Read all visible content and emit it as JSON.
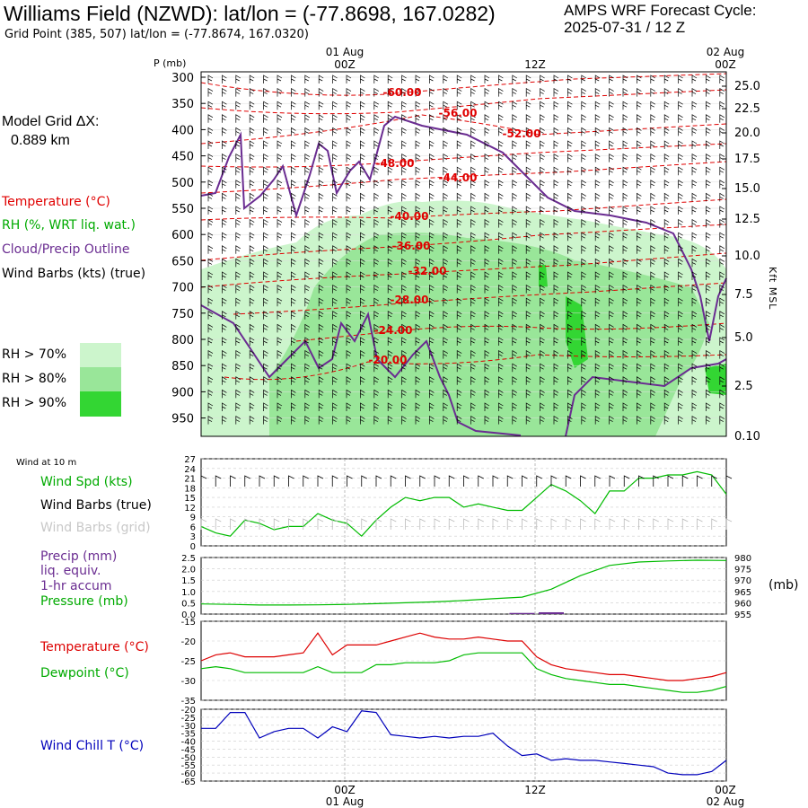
{
  "header": {
    "title": "Williams Field (NZWD):  lat/lon = (-77.8698, 167.0282)",
    "subtitle": "Grid Point (385, 507) lat/lon = (-77.8674, 167.0320)",
    "cycle_label": "AMPS WRF Forecast Cycle:",
    "cycle_value": "2025-07-31 / 12  Z"
  },
  "legend": {
    "model_grid": "Model Grid ΔX:",
    "model_grid_value": "0.889 km",
    "temperature": "Temperature (°C)",
    "rh": "RH (%, WRT liq. wat.)",
    "cloud": "Cloud/Precip Outline",
    "wind_barbs": "Wind Barbs (kts) (true)",
    "rh70": "RH > 70%",
    "rh80": "RH > 80%",
    "rh90": "RH > 90%",
    "colors": {
      "temperature": "#e00000",
      "rh": "#00aa00",
      "cloud": "#6a2c91",
      "rh70": "#ccf5cc",
      "rh80": "#99e699",
      "rh90": "#33d633"
    }
  },
  "time_axis": {
    "top_dates": [
      "01 Aug",
      "02 Aug"
    ],
    "ticks": [
      "00Z",
      "12Z",
      "00Z"
    ],
    "bottom_dates": [
      "01 Aug",
      "02 Aug"
    ]
  },
  "chart_data": [
    {
      "type": "area",
      "title": "",
      "ylabel": "P (mb)",
      "y_ticks": [
        "300",
        "350",
        "400",
        "450",
        "500",
        "550",
        "600",
        "650",
        "700",
        "750",
        "800",
        "850",
        "900",
        "950"
      ],
      "right_ticks": [
        "25.0",
        "22.5",
        "20.0",
        "17.5",
        "15.0",
        "12.5",
        "10.0",
        "7.5",
        "5.0",
        "2.5",
        "0.10"
      ],
      "right_label": "Kft MSL",
      "temperature_labels": [
        "-60.00",
        "-56.00",
        "-52.00",
        "-48.00",
        "-44.00",
        "-40.00",
        "-36.00",
        "-32.00",
        "-28.00",
        "-24.00",
        "-20.00"
      ]
    },
    {
      "type": "line",
      "header": "Wind at 10 m",
      "labels": [
        "Wind Spd (kts)",
        "Wind Barbs (true)",
        "Wind Barbs (grid)"
      ],
      "y_ticks": [
        "27",
        "24",
        "21",
        "18",
        "15",
        "12",
        "9",
        "6",
        "3",
        "0"
      ],
      "ylim": [
        0,
        27
      ],
      "x": [
        0,
        1,
        2,
        3,
        4,
        5,
        6,
        7,
        8,
        9,
        10,
        11,
        12,
        13,
        14,
        15,
        16,
        17,
        18,
        19,
        20,
        21,
        22,
        23,
        24,
        25,
        26,
        27,
        28,
        29,
        30,
        31,
        32,
        33,
        34,
        35,
        36
      ],
      "series": [
        {
          "name": "Wind Spd (kts)",
          "color": "#00bb00",
          "values": [
            6,
            4,
            3,
            8,
            7,
            5,
            6,
            6,
            10,
            8,
            7,
            3,
            8,
            12,
            15,
            14,
            15,
            15,
            12,
            13,
            12,
            11,
            11,
            15,
            19,
            17,
            14,
            10,
            17,
            17,
            21,
            21,
            22,
            22,
            23,
            22,
            16
          ]
        }
      ]
    },
    {
      "type": "line",
      "labels": [
        "Precip (mm)",
        "liq. equiv.",
        "1-hr accum",
        "Pressure (mb)"
      ],
      "y_ticks_left": [
        "2.5",
        "2.0",
        "1.5",
        "1.0",
        "0.5",
        "0.0"
      ],
      "y_ticks_right": [
        "980",
        "975",
        "970",
        "965",
        "960",
        "955"
      ],
      "right_unit": "(mb)",
      "ylim": [
        0,
        2.5
      ],
      "x": [
        0,
        2,
        4,
        6,
        8,
        10,
        12,
        14,
        16,
        18,
        20,
        22,
        24,
        26,
        28,
        30,
        32,
        34,
        36
      ],
      "series": [
        {
          "name": "Pressure (mb)",
          "color": "#00bb00",
          "values": [
            959.5,
            959.3,
            959.0,
            959.0,
            959.1,
            959.3,
            959.6,
            960.0,
            960.4,
            961.0,
            961.8,
            962.5,
            966.0,
            972.0,
            976.5,
            978.0,
            978.5,
            978.8,
            978.7
          ]
        },
        {
          "name": "Precip (mm)",
          "color": "#6a2c91",
          "values": [
            0,
            0,
            0,
            0,
            0,
            0,
            0,
            0,
            0,
            0,
            0,
            0.05,
            0.08,
            0,
            0,
            0,
            0,
            0,
            0
          ]
        }
      ]
    },
    {
      "type": "line",
      "labels": [
        "Temperature (°C)",
        "Dewpoint (°C)"
      ],
      "y_ticks": [
        "-20",
        "-25",
        "-30",
        "-35"
      ],
      "ylim": [
        -35,
        -15
      ],
      "x": [
        0,
        1,
        2,
        3,
        4,
        5,
        6,
        7,
        8,
        9,
        10,
        11,
        12,
        13,
        14,
        15,
        16,
        17,
        18,
        19,
        20,
        21,
        22,
        23,
        24,
        25,
        26,
        27,
        28,
        29,
        30,
        31,
        32,
        33,
        34,
        35,
        36
      ],
      "series": [
        {
          "name": "Temperature (°C)",
          "color": "#dd0000",
          "values": [
            -25,
            -23.5,
            -23,
            -24,
            -24,
            -24,
            -23.5,
            -23,
            -18,
            -23.5,
            -21,
            -21,
            -21,
            -20,
            -19,
            -18,
            -19,
            -19.5,
            -19.5,
            -19,
            -19.5,
            -20,
            -20,
            -24,
            -26,
            -27,
            -27.5,
            -28,
            -28.5,
            -28.5,
            -29,
            -29.5,
            -30,
            -30,
            -29.5,
            -29,
            -28
          ]
        },
        {
          "name": "Dewpoint (°C)",
          "color": "#00bb00",
          "values": [
            -27,
            -26.5,
            -27,
            -28,
            -28,
            -28,
            -28,
            -28,
            -26.5,
            -28,
            -28,
            -28,
            -26,
            -26,
            -25.5,
            -25.5,
            -25.5,
            -25,
            -23.5,
            -23,
            -23,
            -23,
            -23,
            -27,
            -28.5,
            -29.5,
            -30,
            -30.5,
            -31,
            -31,
            -31.5,
            -32,
            -32.5,
            -33,
            -33,
            -32.5,
            -31.5
          ]
        }
      ]
    },
    {
      "type": "line",
      "labels": [
        "Wind Chill T (°C)"
      ],
      "y_ticks": [
        "-20",
        "-25",
        "-30",
        "-35",
        "-40",
        "-45",
        "-50",
        "-55",
        "-60",
        "-65"
      ],
      "ylim": [
        -65,
        -20
      ],
      "x": [
        0,
        1,
        2,
        3,
        4,
        5,
        6,
        7,
        8,
        9,
        10,
        11,
        12,
        13,
        14,
        15,
        16,
        17,
        18,
        19,
        20,
        21,
        22,
        23,
        24,
        25,
        26,
        27,
        28,
        29,
        30,
        31,
        32,
        33,
        34,
        35,
        36
      ],
      "series": [
        {
          "name": "Wind Chill T (°C)",
          "color": "#0000bb",
          "values": [
            -32,
            -32,
            -22,
            -22,
            -38,
            -34,
            -32,
            -32,
            -38,
            -31,
            -34,
            -21,
            -22,
            -36,
            -37,
            -38,
            -37,
            -38,
            -37,
            -37,
            -35,
            -43,
            -49,
            -48,
            -52,
            -51,
            -52,
            -52,
            -53,
            -54,
            -55,
            -56,
            -60,
            -61,
            -61,
            -59,
            -52
          ]
        }
      ]
    }
  ]
}
